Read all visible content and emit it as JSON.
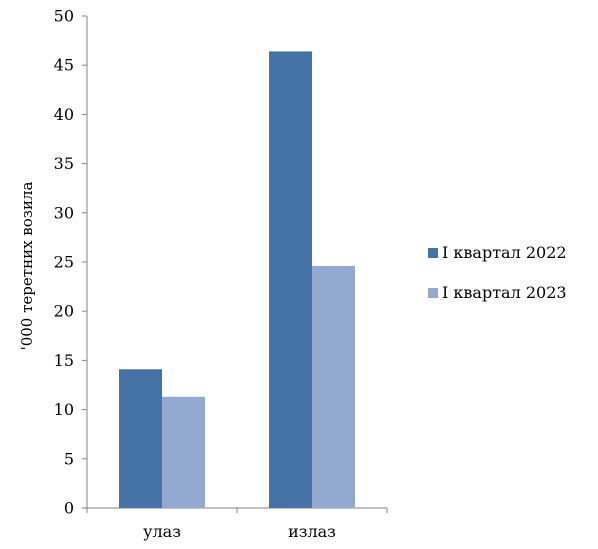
{
  "chart_data": {
    "type": "bar",
    "title": "",
    "xlabel": "",
    "ylabel": "'000 теретних возила",
    "categories": [
      "улаз",
      "излаз"
    ],
    "series": [
      {
        "name": "I квартал 2022",
        "color": "#4572A7",
        "values": [
          14.1,
          46.4
        ]
      },
      {
        "name": "I квартал 2023",
        "color": "#93A9CF",
        "values": [
          11.3,
          24.6
        ]
      }
    ],
    "ylim": [
      0,
      50
    ],
    "yticks": [
      0,
      5,
      10,
      15,
      20,
      25,
      30,
      35,
      40,
      45,
      50
    ],
    "grid": false,
    "legend_position": "right"
  }
}
